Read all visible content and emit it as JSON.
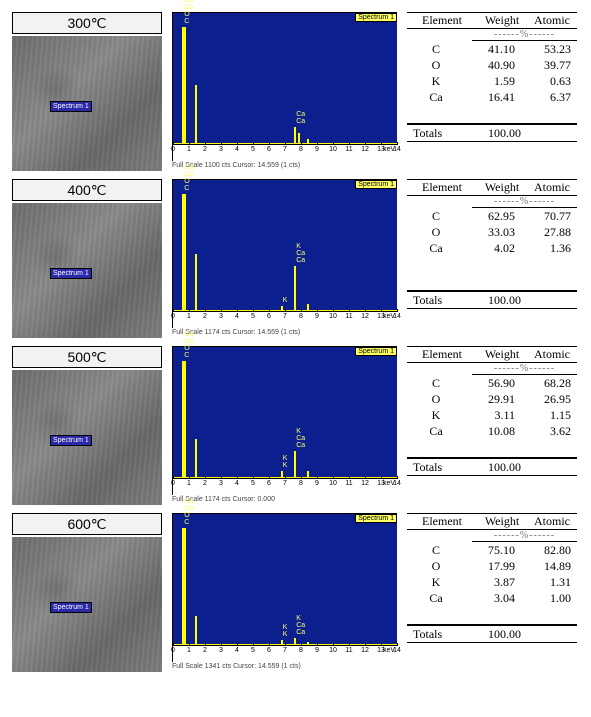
{
  "axis": {
    "ticks": [
      0,
      1,
      2,
      3,
      4,
      5,
      6,
      7,
      8,
      9,
      10,
      11,
      12,
      13,
      14
    ],
    "unit": "keV"
  },
  "table_header": {
    "element": "Element",
    "weight": "Weight",
    "atomic": "Atomic",
    "pct": "------%------",
    "totals": "Totals",
    "totals_val": "100.00"
  },
  "badge": "Spectrum 1",
  "spectrum_tag": "Spectrum 1",
  "rows": [
    {
      "temp": "300℃",
      "caption": "Full Scale 1100 cts Cursor: 14.559  (1 cts)",
      "peaks": [
        {
          "x": 4,
          "h": 118,
          "w": "wide",
          "labels": [
            "C",
            "O",
            "Ca",
            "Ca"
          ]
        },
        {
          "x": 10,
          "h": 60
        },
        {
          "x": 54,
          "h": 18,
          "labels": [
            "Ca",
            "Ca"
          ]
        },
        {
          "x": 56,
          "h": 12
        },
        {
          "x": 60,
          "h": 6
        }
      ],
      "table": [
        {
          "el": "C",
          "w": "41.10",
          "a": "53.23"
        },
        {
          "el": "O",
          "w": "40.90",
          "a": "39.77"
        },
        {
          "el": "K",
          "w": "1.59",
          "a": "0.63"
        },
        {
          "el": "Ca",
          "w": "16.41",
          "a": "6.37"
        }
      ]
    },
    {
      "temp": "400℃",
      "caption": "Full Scale 1174 cts Cursor: 14.559  (1 cts)",
      "peaks": [
        {
          "x": 4,
          "h": 118,
          "w": "wide",
          "labels": [
            "C",
            "O",
            "Ca",
            "Ca"
          ]
        },
        {
          "x": 10,
          "h": 58
        },
        {
          "x": 48,
          "h": 6,
          "labels": [
            "K"
          ]
        },
        {
          "x": 54,
          "h": 46,
          "labels": [
            "Ca",
            "Ca",
            "K"
          ]
        },
        {
          "x": 60,
          "h": 8
        }
      ],
      "table": [
        {
          "el": "C",
          "w": "62.95",
          "a": "70.77"
        },
        {
          "el": "O",
          "w": "33.03",
          "a": "27.88"
        },
        {
          "el": "Ca",
          "w": "4.02",
          "a": "1.36"
        }
      ]
    },
    {
      "temp": "500℃",
      "caption": "Full Scale 1174 cts Cursor: 0.000",
      "peaks": [
        {
          "x": 4,
          "h": 118,
          "w": "wide",
          "labels": [
            "C",
            "O",
            "Ca",
            "Ca"
          ]
        },
        {
          "x": 10,
          "h": 40
        },
        {
          "x": 48,
          "h": 8,
          "labels": [
            "K",
            "K"
          ]
        },
        {
          "x": 54,
          "h": 28,
          "labels": [
            "Ca",
            "Ca",
            "K"
          ]
        },
        {
          "x": 60,
          "h": 8
        }
      ],
      "table": [
        {
          "el": "C",
          "w": "56.90",
          "a": "68.28"
        },
        {
          "el": "O",
          "w": "29.91",
          "a": "26.95"
        },
        {
          "el": "K",
          "w": "3.11",
          "a": "1.15"
        },
        {
          "el": "Ca",
          "w": "10.08",
          "a": "3.62"
        }
      ]
    },
    {
      "temp": "600℃",
      "caption": "Full Scale 1341 cts Cursor: 14.559  (1 cts)",
      "peaks": [
        {
          "x": 4,
          "h": 118,
          "w": "wide",
          "labels": [
            "C",
            "O",
            "Ca",
            "Ca"
          ]
        },
        {
          "x": 10,
          "h": 30
        },
        {
          "x": 48,
          "h": 6,
          "labels": [
            "K",
            "K"
          ]
        },
        {
          "x": 54,
          "h": 8,
          "labels": [
            "Ca",
            "Ca",
            "K"
          ]
        },
        {
          "x": 60,
          "h": 4
        }
      ],
      "table": [
        {
          "el": "C",
          "w": "75.10",
          "a": "82.80"
        },
        {
          "el": "O",
          "w": "17.99",
          "a": "14.89"
        },
        {
          "el": "K",
          "w": "3.87",
          "a": "1.31"
        },
        {
          "el": "Ca",
          "w": "3.04",
          "a": "1.00"
        }
      ]
    }
  ]
}
